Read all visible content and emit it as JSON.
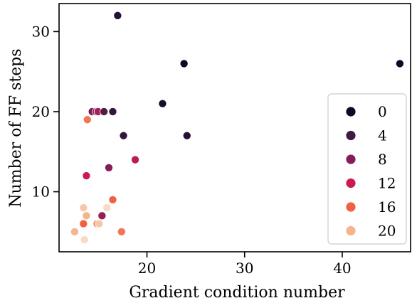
{
  "chart_data": {
    "type": "scatter",
    "xlabel": "Gradient condition number",
    "ylabel": "Number of FF steps",
    "xlim": [
      11,
      47
    ],
    "ylim": [
      2.5,
      33.5
    ],
    "xticks": [
      20,
      30,
      40
    ],
    "yticks": [
      10,
      20,
      30
    ],
    "xtick_labels": [
      "20",
      "30",
      "40"
    ],
    "ytick_labels": [
      "10",
      "20",
      "30"
    ],
    "grid": false,
    "legend_placement": "right",
    "legend": [
      {
        "label": "0",
        "color": "#0b0924"
      },
      {
        "label": "4",
        "color": "#3f1b44"
      },
      {
        "label": "8",
        "color": "#841e5a"
      },
      {
        "label": "12",
        "color": "#cb1b4f"
      },
      {
        "label": "16",
        "color": "#f06043"
      },
      {
        "label": "20",
        "color": "#f6b48e"
      }
    ],
    "points": [
      {
        "x": 17.0,
        "y": 32,
        "c": 2
      },
      {
        "x": 23.8,
        "y": 26,
        "c": 0
      },
      {
        "x": 45.9,
        "y": 26,
        "c": 0
      },
      {
        "x": 21.6,
        "y": 21,
        "c": 1
      },
      {
        "x": 14.4,
        "y": 20,
        "c": 7
      },
      {
        "x": 14.8,
        "y": 20,
        "c": 9
      },
      {
        "x": 15.0,
        "y": 20,
        "c": 10
      },
      {
        "x": 15.6,
        "y": 20,
        "c": 5
      },
      {
        "x": 16.5,
        "y": 20,
        "c": 3
      },
      {
        "x": 13.9,
        "y": 19,
        "c": 17
      },
      {
        "x": 17.6,
        "y": 17,
        "c": 3
      },
      {
        "x": 24.1,
        "y": 17,
        "c": 2
      },
      {
        "x": 18.8,
        "y": 14,
        "c": 11
      },
      {
        "x": 16.1,
        "y": 13,
        "c": 8
      },
      {
        "x": 13.8,
        "y": 12,
        "c": 12
      },
      {
        "x": 16.5,
        "y": 9,
        "c": 16
      },
      {
        "x": 13.5,
        "y": 8,
        "c": 21
      },
      {
        "x": 15.9,
        "y": 8,
        "c": 22
      },
      {
        "x": 13.8,
        "y": 7,
        "c": 20
      },
      {
        "x": 15.4,
        "y": 7,
        "c": 9
      },
      {
        "x": 13.5,
        "y": 6,
        "c": 16
      },
      {
        "x": 14.9,
        "y": 6,
        "c": 17
      },
      {
        "x": 15.1,
        "y": 6,
        "c": 21
      },
      {
        "x": 12.6,
        "y": 5,
        "c": 20
      },
      {
        "x": 17.4,
        "y": 5,
        "c": 17
      },
      {
        "x": 13.6,
        "y": 4,
        "c": 22
      }
    ]
  }
}
